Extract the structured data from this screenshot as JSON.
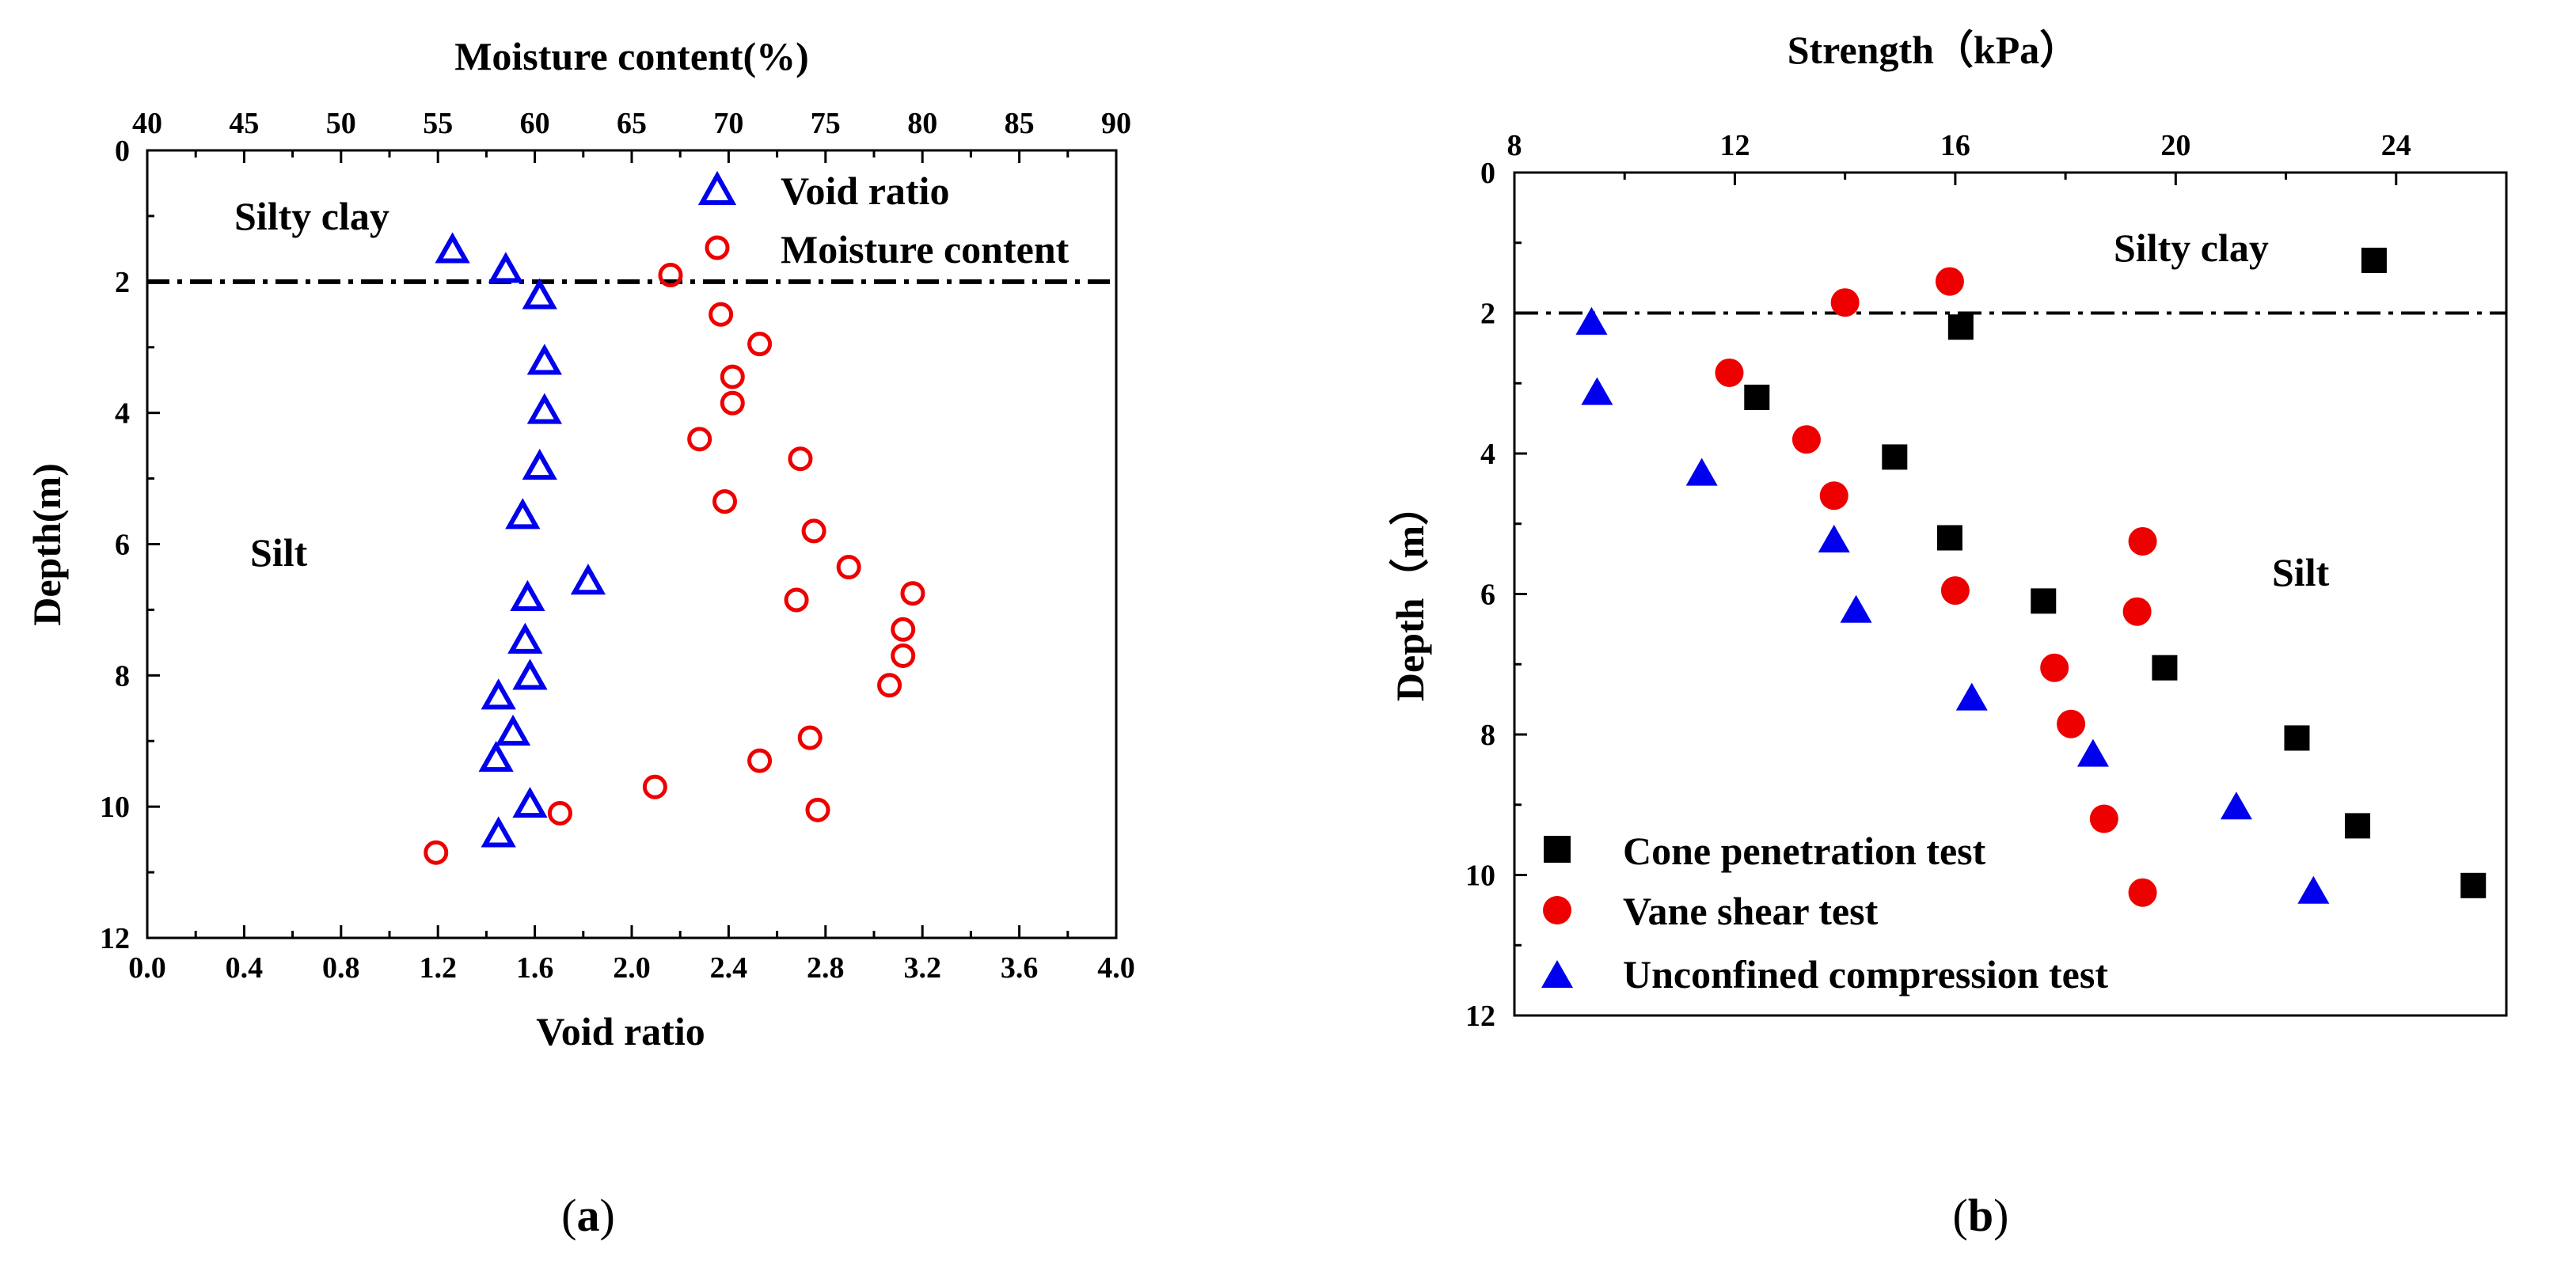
{
  "chart_data": [
    {
      "id": "a",
      "type": "scatter",
      "caption": {
        "open": "(",
        "letter": "a",
        "close": ")"
      },
      "top_axis": {
        "label": "Moisture content(%)",
        "range": [
          40,
          90
        ],
        "ticks": [
          40,
          45,
          50,
          55,
          60,
          65,
          70,
          75,
          80,
          85,
          90
        ]
      },
      "bottom_axis": {
        "label": "Void ratio",
        "range": [
          0.0,
          4.0
        ],
        "ticks": [
          "0.0",
          "0.4",
          "0.8",
          "1.2",
          "1.6",
          "2.0",
          "2.4",
          "2.8",
          "3.2",
          "3.6",
          "4.0"
        ]
      },
      "y_axis": {
        "label": "Depth(m)",
        "range": [
          0,
          12
        ],
        "ticks": [
          0,
          2,
          4,
          6,
          8,
          10,
          12
        ],
        "inverted": true
      },
      "reference_line": {
        "depth": 2,
        "style": "dash-dot"
      },
      "annotations": [
        {
          "text": "Silty clay",
          "x": 0.3,
          "depth": 1.1
        },
        {
          "text": "Silt",
          "x": 0.35,
          "depth": 6.2
        }
      ],
      "series": [
        {
          "name": "Void ratio",
          "marker": "open-triangle",
          "color": "#0000ee",
          "axis": "bottom",
          "points": [
            [
              1.26,
              1.55
            ],
            [
              1.48,
              1.85
            ],
            [
              1.62,
              2.25
            ],
            [
              1.64,
              3.25
            ],
            [
              1.64,
              4.0
            ],
            [
              1.62,
              4.85
            ],
            [
              1.55,
              5.6
            ],
            [
              1.82,
              6.6
            ],
            [
              1.57,
              6.85
            ],
            [
              1.56,
              7.5
            ],
            [
              1.58,
              8.05
            ],
            [
              1.45,
              8.35
            ],
            [
              1.51,
              8.9
            ],
            [
              1.44,
              9.3
            ],
            [
              1.58,
              10.0
            ],
            [
              1.45,
              10.45
            ]
          ]
        },
        {
          "name": "Moisture content",
          "marker": "open-circle",
          "color": "#ee0000",
          "axis": "top",
          "points": [
            [
              67.0,
              1.9
            ],
            [
              69.6,
              2.5
            ],
            [
              71.6,
              2.95
            ],
            [
              70.2,
              3.45
            ],
            [
              70.2,
              3.85
            ],
            [
              68.5,
              4.4
            ],
            [
              73.7,
              4.7
            ],
            [
              69.8,
              5.35
            ],
            [
              74.4,
              5.8
            ],
            [
              76.2,
              6.35
            ],
            [
              79.5,
              6.75
            ],
            [
              73.5,
              6.85
            ],
            [
              79.0,
              7.3
            ],
            [
              79.0,
              7.7
            ],
            [
              78.3,
              8.15
            ],
            [
              74.2,
              8.95
            ],
            [
              71.6,
              9.3
            ],
            [
              66.2,
              9.7
            ],
            [
              74.6,
              10.05
            ],
            [
              61.3,
              10.1
            ],
            [
              54.9,
              10.7
            ]
          ]
        }
      ]
    },
    {
      "id": "b",
      "type": "scatter",
      "caption": {
        "open": "(",
        "letter": "b",
        "close": ")"
      },
      "top_axis": {
        "label": "Strength（kPa）",
        "range": [
          8,
          26
        ],
        "ticks": [
          8,
          12,
          16,
          20,
          24
        ]
      },
      "y_axis": {
        "label": "Depth（m）",
        "range": [
          0,
          12
        ],
        "ticks": [
          0,
          2,
          4,
          6,
          8,
          10,
          12
        ],
        "inverted": true
      },
      "reference_line": {
        "depth": 2,
        "style": "dash-dot"
      },
      "annotations": [
        {
          "text": "Silty clay",
          "x": 16.1,
          "depth": 1.35
        },
        {
          "text": "Silt",
          "x": 19.9,
          "depth": 5.8
        }
      ],
      "series": [
        {
          "name": "Cone penetration test",
          "marker": "square",
          "color": "#000000",
          "points": [
            [
              23.6,
              1.25
            ],
            [
              16.1,
              2.2
            ],
            [
              12.4,
              3.2
            ],
            [
              14.9,
              4.05
            ],
            [
              15.9,
              5.2
            ],
            [
              17.6,
              6.1
            ],
            [
              19.8,
              7.05
            ],
            [
              22.2,
              8.05
            ],
            [
              23.3,
              9.3
            ],
            [
              25.4,
              10.15
            ]
          ]
        },
        {
          "name": "Vane shear test",
          "marker": "circle",
          "color": "#ee0000",
          "points": [
            [
              15.9,
              1.55
            ],
            [
              14.0,
              1.85
            ],
            [
              11.9,
              2.85
            ],
            [
              13.3,
              3.8
            ],
            [
              13.8,
              4.6
            ],
            [
              19.4,
              5.25
            ],
            [
              16.0,
              5.95
            ],
            [
              19.3,
              6.25
            ],
            [
              17.8,
              7.05
            ],
            [
              18.1,
              7.85
            ],
            [
              18.7,
              9.2
            ],
            [
              19.4,
              10.25
            ]
          ]
        },
        {
          "name": "Unconfined compression test",
          "marker": "triangle",
          "color": "#0000ee",
          "points": [
            [
              9.4,
              2.15
            ],
            [
              9.5,
              3.15
            ],
            [
              11.4,
              4.3
            ],
            [
              13.8,
              5.25
            ],
            [
              14.2,
              6.25
            ],
            [
              16.3,
              7.5
            ],
            [
              18.5,
              8.3
            ],
            [
              21.1,
              9.05
            ],
            [
              22.5,
              10.25
            ]
          ]
        }
      ]
    }
  ]
}
